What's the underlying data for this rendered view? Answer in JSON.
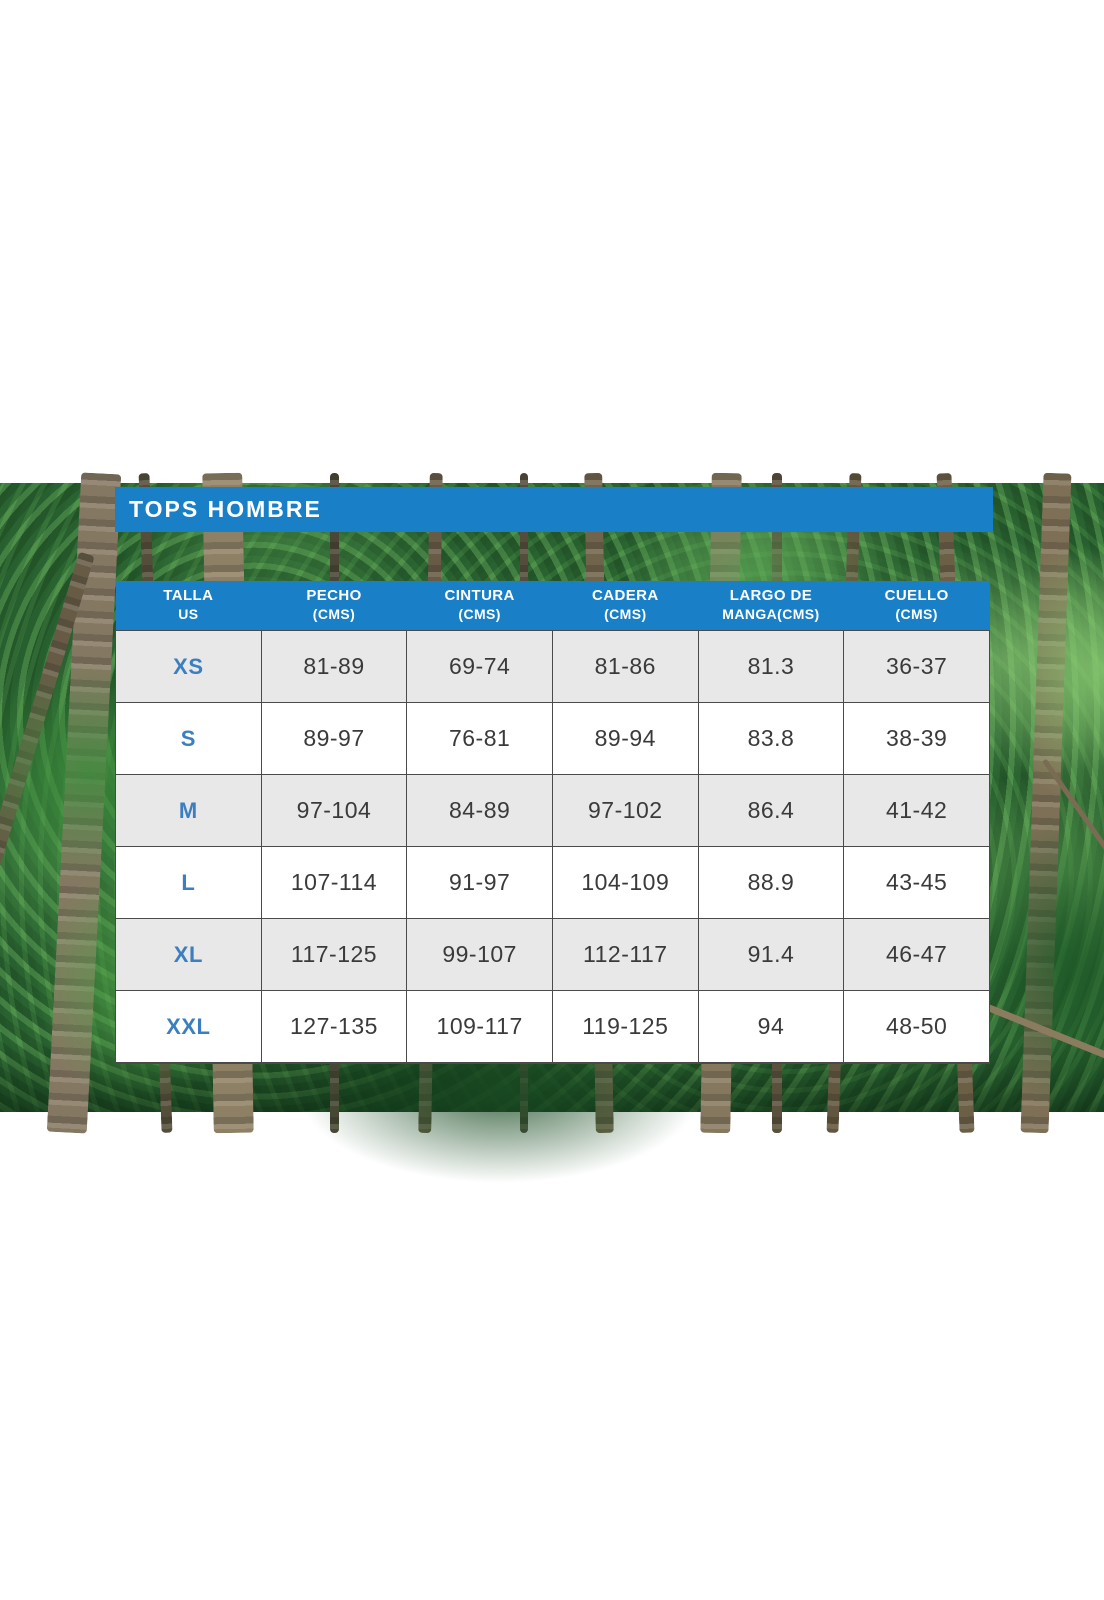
{
  "colors": {
    "header_blue": "#1980c8",
    "size_blue": "#3c7fc0",
    "row_alt_gray": "#e8e8e8",
    "border_gray": "#4a4a4a"
  },
  "chart_data": {
    "type": "table",
    "title": "TOPS HOMBRE",
    "columns": [
      {
        "label": "TALLA",
        "sub": "US"
      },
      {
        "label": "PECHO",
        "sub": "(CMS)"
      },
      {
        "label": "CINTURA",
        "sub": "(CMS)"
      },
      {
        "label": "CADERA",
        "sub": "(CMS)"
      },
      {
        "label": "LARGO DE",
        "sub": "MANGA(CMS)"
      },
      {
        "label": "CUELLO",
        "sub": "(CMS)"
      }
    ],
    "rows": [
      {
        "size": "XS",
        "values": [
          "81-89",
          "69-74",
          "81-86",
          "81.3",
          "36-37"
        ]
      },
      {
        "size": "S",
        "values": [
          "89-97",
          "76-81",
          "89-94",
          "83.8",
          "38-39"
        ]
      },
      {
        "size": "M",
        "values": [
          "97-104",
          "84-89",
          "97-102",
          "86.4",
          "41-42"
        ]
      },
      {
        "size": "L",
        "values": [
          "107-114",
          "91-97",
          "104-109",
          "88.9",
          "43-45"
        ]
      },
      {
        "size": "XL",
        "values": [
          "117-125",
          "99-107",
          "112-117",
          "91.4",
          "46-47"
        ]
      },
      {
        "size": "XXL",
        "values": [
          "127-135",
          "109-117",
          "119-125",
          "94",
          "48-50"
        ]
      }
    ]
  }
}
